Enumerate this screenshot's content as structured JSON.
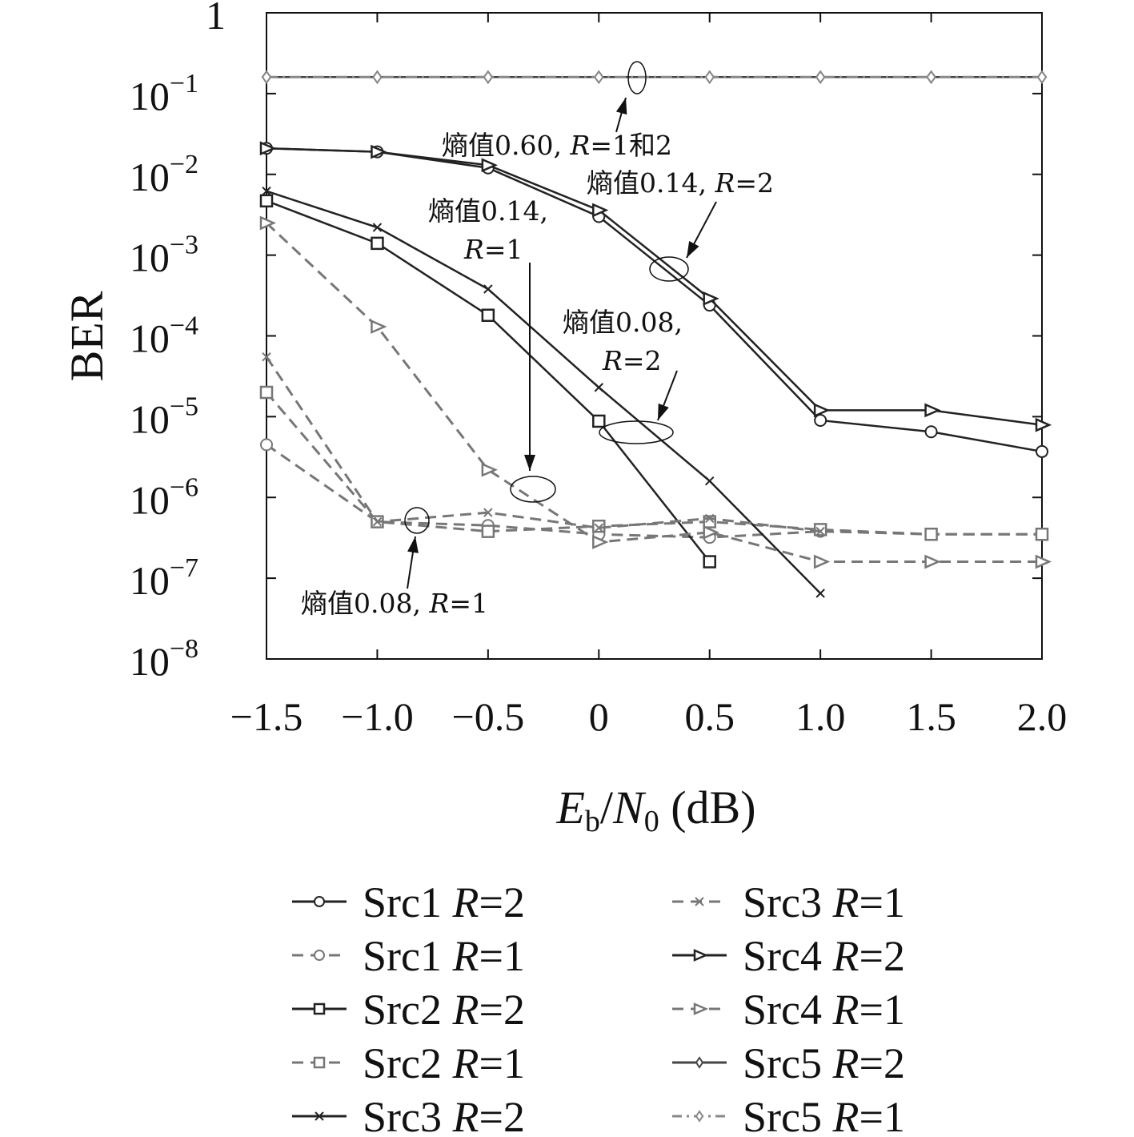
{
  "chart_data": {
    "type": "line",
    "title": "",
    "xlabel": {
      "main": "E",
      "sub1": "b",
      "slash": "/",
      "main2": "N",
      "sub2": "0",
      "unit": " (dB)"
    },
    "ylabel": "BER",
    "xlim": [
      -1.5,
      2.0
    ],
    "ylim": [
      1e-08,
      1
    ],
    "yscale": "log",
    "grid": false,
    "x_ticks": [
      "−1.5",
      "−1.0",
      "−0.5",
      "0",
      "0.5",
      "1.0",
      "1.5",
      "2.0"
    ],
    "y_ticks": [
      {
        "base": "10",
        "exp": "−8",
        "value": 1e-08
      },
      {
        "base": "10",
        "exp": "−7",
        "value": 1e-07
      },
      {
        "base": "10",
        "exp": "−6",
        "value": 1e-06
      },
      {
        "base": "10",
        "exp": "−5",
        "value": 1e-05
      },
      {
        "base": "10",
        "exp": "−4",
        "value": 0.0001
      },
      {
        "base": "10",
        "exp": "−3",
        "value": 0.001
      },
      {
        "base": "10",
        "exp": "−2",
        "value": 0.01
      },
      {
        "base": "10",
        "exp": "−1",
        "value": 0.1
      },
      {
        "base": "1",
        "exp": "",
        "value": 1
      }
    ],
    "series": [
      {
        "name": "Src1",
        "r": "R=2",
        "style": "solid",
        "marker": "circle",
        "color": "#222222",
        "x": [
          -1.5,
          -1.0,
          -0.5,
          0,
          0.5,
          1.0,
          1.5,
          2.0
        ],
        "y": [
          0.021,
          0.019,
          0.012,
          0.003,
          0.00024,
          9e-06,
          6.5e-06,
          3.7e-06
        ]
      },
      {
        "name": "Src1",
        "r": "R=1",
        "style": "dashed",
        "marker": "circle",
        "color": "#777777",
        "x": [
          -1.5,
          -1.0,
          -0.5,
          0,
          0.5,
          1.0,
          1.5,
          2.0
        ],
        "y": [
          4.5e-06,
          5e-07,
          4.5e-07,
          3.5e-07,
          3.2e-07,
          3.8e-07,
          3.5e-07,
          3.5e-07
        ]
      },
      {
        "name": "Src2",
        "r": "R=2",
        "style": "solid",
        "marker": "square",
        "color": "#222222",
        "x": [
          -1.5,
          -1.0,
          -0.5,
          0,
          0.5
        ],
        "y": [
          0.0047,
          0.0014,
          0.00018,
          8.8e-06,
          1.6e-07
        ]
      },
      {
        "name": "Src2",
        "r": "R=1",
        "style": "dashed",
        "marker": "square",
        "color": "#777777",
        "x": [
          -1.5,
          -1.0,
          -0.5,
          0,
          0.5,
          1.0,
          1.5,
          2.0
        ],
        "y": [
          2e-05,
          5e-07,
          3.8e-07,
          4.4e-07,
          5e-07,
          4e-07,
          3.5e-07,
          3.5e-07
        ]
      },
      {
        "name": "Src3",
        "r": "R=2",
        "style": "solid",
        "marker": "x",
        "color": "#222222",
        "x": [
          -1.5,
          -1.0,
          -0.5,
          0,
          0.5,
          1.0
        ],
        "y": [
          0.0062,
          0.0022,
          0.00038,
          2.3e-05,
          1.6e-06,
          6.5e-08
        ]
      },
      {
        "name": "Src3",
        "r": "R=1",
        "style": "dashed",
        "marker": "x",
        "color": "#777777",
        "x": [
          -1.5,
          -1.0,
          -0.5,
          0,
          0.5,
          1.0
        ],
        "y": [
          5.5e-05,
          5e-07,
          6.5e-07,
          4.2e-07,
          5.5e-07,
          3.8e-07
        ]
      },
      {
        "name": "Src4",
        "r": "R=2",
        "style": "solid",
        "marker": "triangle-right",
        "color": "#222222",
        "x": [
          -1.5,
          -1.0,
          -0.5,
          0,
          0.5,
          1.0,
          1.5,
          2.0
        ],
        "y": [
          0.021,
          0.019,
          0.013,
          0.0036,
          0.00029,
          1.2e-05,
          1.2e-05,
          7.9e-06
        ]
      },
      {
        "name": "Src4",
        "r": "R=1",
        "style": "dashed",
        "marker": "triangle-right",
        "color": "#777777",
        "x": [
          -1.5,
          -1.0,
          -0.5,
          0,
          0.5,
          1.0,
          1.5,
          2.0
        ],
        "y": [
          0.0025,
          0.00013,
          2.2e-06,
          2.8e-07,
          3.7e-07,
          1.6e-07,
          1.6e-07,
          1.6e-07
        ]
      },
      {
        "name": "Src5",
        "r": "R=2",
        "style": "solid",
        "marker": "diamond",
        "color": "#444444",
        "x": [
          -1.5,
          -1.0,
          -0.5,
          0,
          0.5,
          1.0,
          1.5,
          2.0
        ],
        "y": [
          0.16,
          0.16,
          0.16,
          0.16,
          0.16,
          0.16,
          0.16,
          0.16
        ]
      },
      {
        "name": "Src5",
        "r": "R=1",
        "style": "dashdot",
        "marker": "diamond",
        "color": "#888888",
        "x": [
          -1.5,
          -1.0,
          -0.5,
          0,
          0.5,
          1.0,
          1.5,
          2.0
        ],
        "y": [
          0.16,
          0.16,
          0.16,
          0.16,
          0.16,
          0.16,
          0.16,
          0.16
        ]
      }
    ],
    "annotations": [
      {
        "lines": [
          "熵值0.60, R=1和2"
        ],
        "target": {
          "x": 0.17,
          "y": 0.16
        }
      },
      {
        "lines": [
          "熵值0.14, R=2"
        ],
        "target": {
          "x": 0.31,
          "y": 0.0007
        }
      },
      {
        "lines": [
          "熵值0.14,",
          "R=1"
        ],
        "target": {
          "x": -0.3,
          "y": 1.2e-06
        }
      },
      {
        "lines": [
          "熵值0.08,",
          "R=2"
        ],
        "target": {
          "x": 0.27,
          "y": 7.5e-06
        }
      },
      {
        "lines": [
          "熵值0.08, R=1"
        ],
        "target": {
          "x": -0.82,
          "y": 5e-07
        }
      }
    ],
    "legend_position": "bottom"
  }
}
